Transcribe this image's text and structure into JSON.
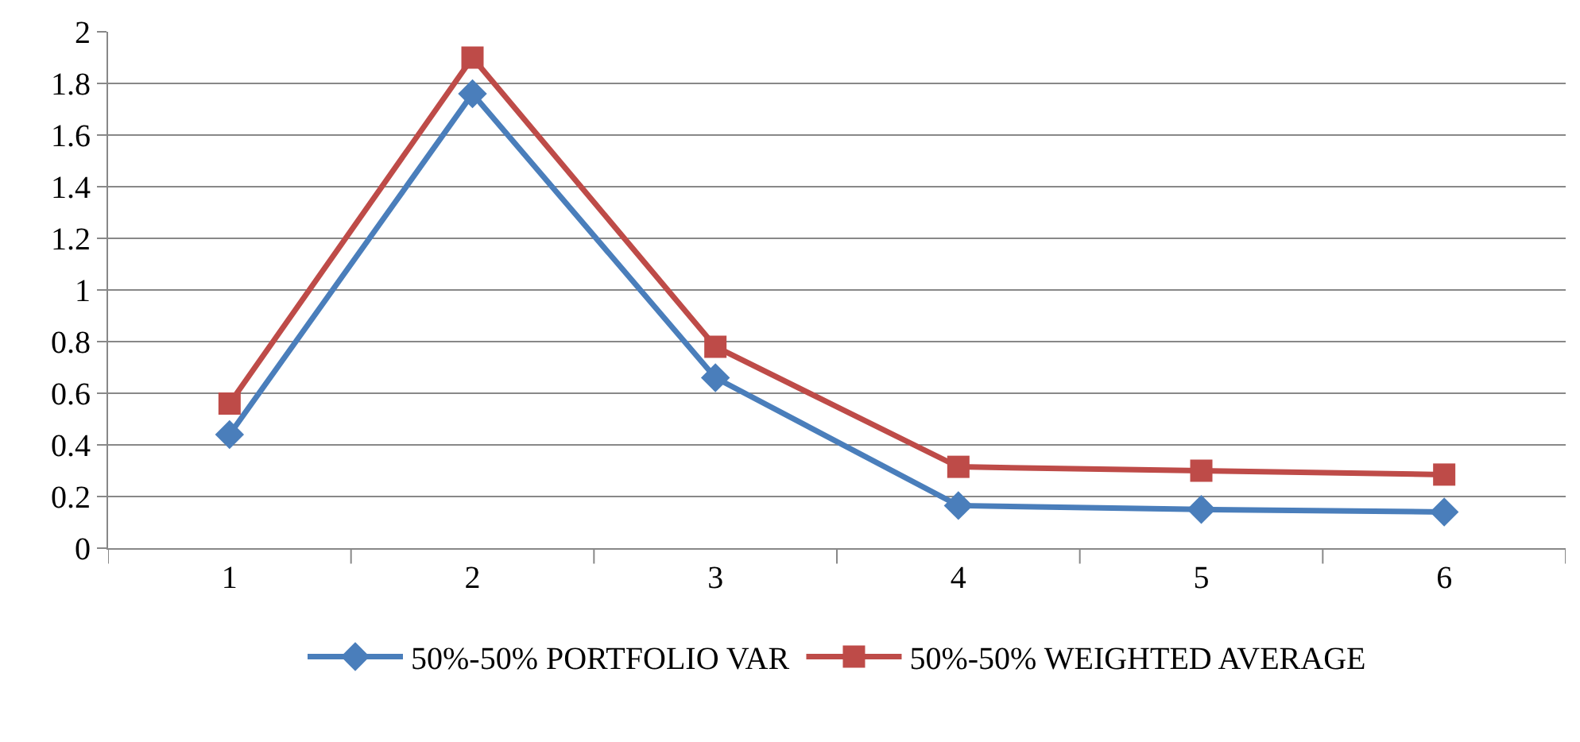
{
  "chart_data": {
    "type": "line",
    "categories": [
      "1",
      "2",
      "3",
      "4",
      "5",
      "6"
    ],
    "series": [
      {
        "name": "50%-50% PORTFOLIO VAR",
        "color": "#4a7ebb",
        "values": [
          0.44,
          1.76,
          0.66,
          0.165,
          0.15,
          0.14
        ],
        "marker": "diamond"
      },
      {
        "name": "50%-50% WEIGHTED AVERAGE",
        "color": "#be4b48",
        "values": [
          0.56,
          1.9,
          0.78,
          0.315,
          0.3,
          0.285
        ],
        "marker": "square"
      }
    ],
    "ylim": [
      0,
      2
    ],
    "yticks": [
      0,
      {
        "value": 0.2,
        "label": "0.2"
      },
      {
        "value": 0.4,
        "label": "0.4"
      },
      {
        "value": 0.6,
        "label": "0.6"
      },
      {
        "value": 0.8,
        "label": "0.8"
      },
      1,
      {
        "value": 1.2,
        "label": "1.2"
      },
      {
        "value": 1.4,
        "label": "1.4"
      },
      {
        "value": 1.6,
        "label": "1.6"
      },
      {
        "value": 1.8,
        "label": "1.8"
      },
      2
    ],
    "grid": "y",
    "legend": "bottom",
    "line_style": "solid"
  }
}
